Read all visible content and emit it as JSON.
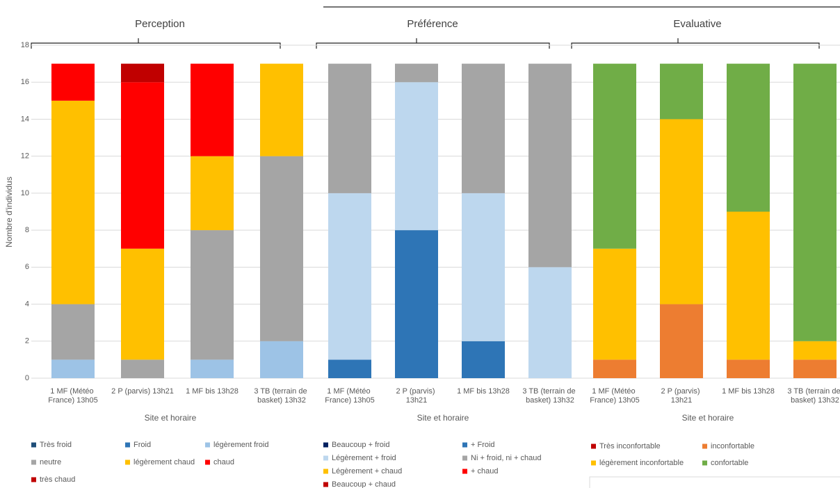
{
  "chart_data": [
    {
      "type": "bar",
      "stacked": true,
      "title": "Perception",
      "xlabel": "Site et horaire",
      "ylabel": "Nombre d'individus",
      "ylim": [
        0,
        18
      ],
      "yticks": [
        0,
        2,
        4,
        6,
        8,
        10,
        12,
        14,
        16,
        18
      ],
      "grid": true,
      "categories": [
        "1 MF (Météo France) 13h05",
        "2 P (parvis) 13h21",
        "1 MF bis 13h28",
        "3 TB (terrain de basket) 13h32"
      ],
      "series": [
        {
          "name": "Très froid",
          "color": "#1f4e79",
          "values": [
            0,
            0,
            0,
            0
          ]
        },
        {
          "name": "Froid",
          "color": "#2e75b6",
          "values": [
            0,
            0,
            0,
            0
          ]
        },
        {
          "name": "légèrement froid",
          "color": "#9dc3e6",
          "values": [
            1,
            0,
            1,
            2
          ]
        },
        {
          "name": "neutre",
          "color": "#a5a5a5",
          "values": [
            3,
            1,
            7,
            10
          ]
        },
        {
          "name": "légèrement chaud",
          "color": "#ffc000",
          "values": [
            11,
            6,
            4,
            5
          ]
        },
        {
          "name": "chaud",
          "color": "#ff0000",
          "values": [
            2,
            9,
            5,
            0
          ]
        },
        {
          "name": "très chaud",
          "color": "#c00000",
          "values": [
            0,
            1,
            0,
            0
          ]
        }
      ]
    },
    {
      "type": "bar",
      "stacked": true,
      "title": "Préférence",
      "xlabel": "Site et horaire",
      "categories": [
        "1 MF (Météo France) 13h05",
        "2 P (parvis) 13h21",
        "1 MF bis 13h28",
        "3 TB (terrain de basket) 13h32"
      ],
      "series": [
        {
          "name": "Beaucoup + froid",
          "color": "#002060",
          "values": [
            0,
            0,
            0,
            0
          ]
        },
        {
          "name": "+ Froid",
          "color": "#2e75b6",
          "values": [
            1,
            8,
            2,
            0
          ]
        },
        {
          "name": "Légèrement + froid",
          "color": "#bdd7ee",
          "values": [
            9,
            8,
            8,
            6
          ]
        },
        {
          "name": "Ni + froid, ni + chaud",
          "color": "#a5a5a5",
          "values": [
            7,
            1,
            7,
            11
          ]
        },
        {
          "name": "Légèrement + chaud",
          "color": "#ffc000",
          "values": [
            0,
            0,
            0,
            0
          ]
        },
        {
          "name": "+ chaud",
          "color": "#ff0000",
          "values": [
            0,
            0,
            0,
            0
          ]
        },
        {
          "name": "Beaucoup + chaud",
          "color": "#c00000",
          "values": [
            0,
            0,
            0,
            0
          ]
        }
      ]
    },
    {
      "type": "bar",
      "stacked": true,
      "title": "Evaluative",
      "xlabel": "Site et horaire",
      "categories": [
        "1 MF (Météo France) 13h05",
        "2 P (parvis) 13h21",
        "1 MF bis 13h28",
        "3 TB (terrain de basket) 13h32"
      ],
      "series": [
        {
          "name": "Très inconfortable",
          "color": "#c00000",
          "values": [
            0,
            0,
            0,
            0
          ]
        },
        {
          "name": "inconfortable",
          "color": "#ed7d31",
          "values": [
            1,
            4,
            1,
            1
          ]
        },
        {
          "name": "légèrement inconfortable",
          "color": "#ffc000",
          "values": [
            6,
            10,
            8,
            1
          ]
        },
        {
          "name": "confortable",
          "color": "#70ad47",
          "values": [
            10,
            3,
            8,
            15
          ]
        }
      ]
    }
  ]
}
